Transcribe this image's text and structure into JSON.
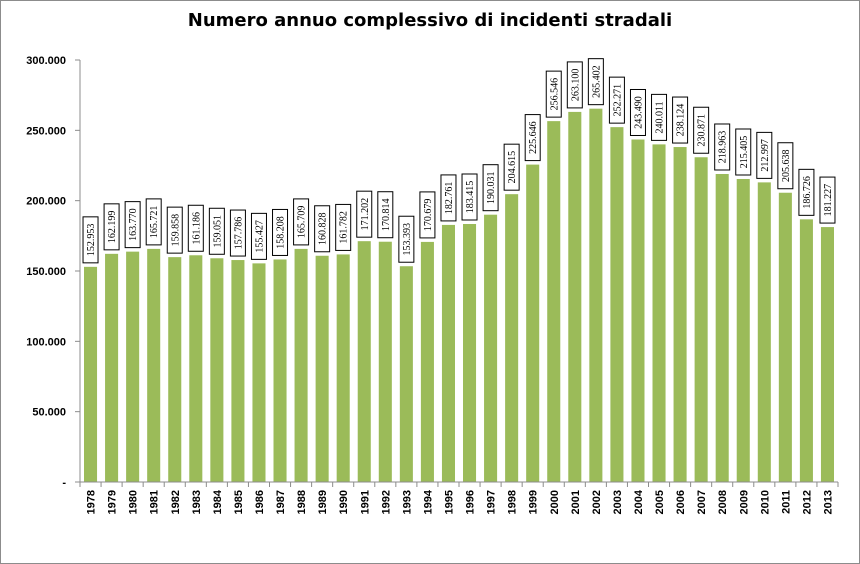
{
  "chart_data": {
    "type": "bar",
    "title": "Numero annuo complessivo di incidenti stradali",
    "xlabel": "",
    "ylabel": "",
    "ylim": [
      0,
      300000
    ],
    "ytick_values": [
      0,
      50000,
      100000,
      150000,
      200000,
      250000,
      300000
    ],
    "ytick_labels": [
      "-",
      "50.000",
      "100.000",
      "150.000",
      "200.000",
      "250.000",
      "300.000"
    ],
    "grid": false,
    "legend": "none",
    "bar_color": "#9bbb59",
    "categories": [
      "1978",
      "1979",
      "1980",
      "1981",
      "1982",
      "1983",
      "1984",
      "1985",
      "1986",
      "1987",
      "1988",
      "1989",
      "1990",
      "1991",
      "1992",
      "1993",
      "1994",
      "1995",
      "1996",
      "1997",
      "1998",
      "1999",
      "2000",
      "2001",
      "2002",
      "2003",
      "2004",
      "2005",
      "2006",
      "2007",
      "2008",
      "2009",
      "2010",
      "2011",
      "2012",
      "2013"
    ],
    "values": [
      152953,
      162199,
      163770,
      165721,
      159858,
      161186,
      159051,
      157786,
      155427,
      158208,
      165709,
      160828,
      161782,
      171202,
      170814,
      153393,
      170679,
      182761,
      183415,
      190031,
      204615,
      225646,
      256546,
      263100,
      265402,
      252271,
      243490,
      240011,
      238124,
      230871,
      218963,
      215405,
      212997,
      205638,
      186726,
      181227
    ],
    "data_labels": [
      "152.953",
      "162.199",
      "163.770",
      "165.721",
      "159.858",
      "161.186",
      "159.051",
      "157.786",
      "155.427",
      "158.208",
      "165.709",
      "160.828",
      "161.782",
      "171.202",
      "170.814",
      "153.393",
      "170.679",
      "182.761",
      "183.415",
      "190.031",
      "204.615",
      "225.646",
      "256.546",
      "263.100",
      "265.402",
      "252.271",
      "243.490",
      "240.011",
      "238.124",
      "230.871",
      "218.963",
      "215.405",
      "212.997",
      "205.638",
      "186.726",
      "181.227"
    ]
  }
}
